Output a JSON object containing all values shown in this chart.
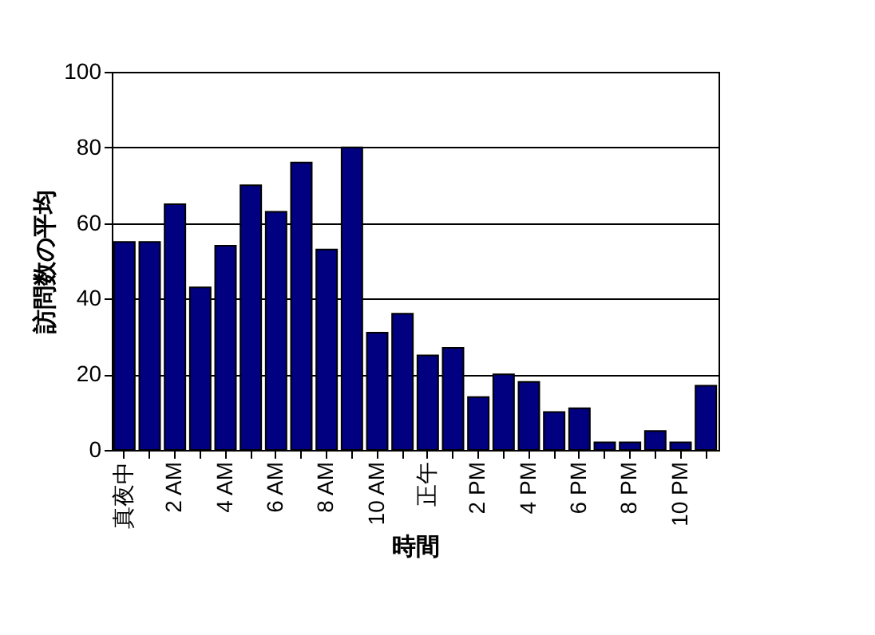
{
  "chart_data": {
    "type": "bar",
    "xlabel": "時間",
    "ylabel": "訪問数の平均",
    "categories": [
      "真夜中",
      null,
      "2 AM",
      null,
      "4 AM",
      null,
      "6 AM",
      null,
      "8 AM",
      null,
      "10 AM",
      null,
      "正午",
      null,
      "2 PM",
      null,
      "4 PM",
      null,
      "6 PM",
      null,
      "8 PM",
      null,
      "10 PM",
      null
    ],
    "values": [
      55,
      55,
      65,
      43,
      54,
      70,
      63,
      76,
      53,
      80,
      31,
      36,
      25,
      27,
      14,
      20,
      18,
      10,
      11,
      2,
      2,
      5,
      2,
      17
    ],
    "color": "#000080",
    "ylim": [
      0,
      100
    ],
    "yticks": [
      0,
      20,
      40,
      60,
      80,
      100
    ],
    "grid": "y"
  }
}
